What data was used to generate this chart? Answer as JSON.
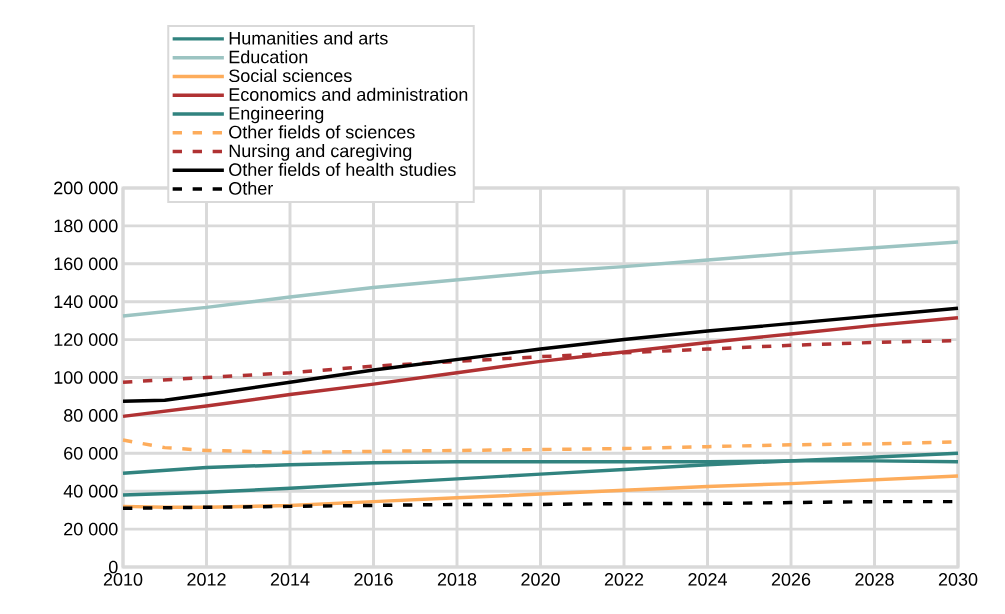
{
  "chart_data": {
    "type": "line",
    "xlim": [
      2010,
      2030
    ],
    "xticks": [
      2010,
      2012,
      2014,
      2016,
      2018,
      2020,
      2022,
      2024,
      2026,
      2028,
      2030
    ],
    "ylim": [
      0,
      200000
    ],
    "yticks": [
      {
        "value": 0,
        "label": "0"
      },
      {
        "value": 20000,
        "label": "20 000"
      },
      {
        "value": 40000,
        "label": "40 000"
      },
      {
        "value": 60000,
        "label": "60 000"
      },
      {
        "value": 80000,
        "label": "80 000"
      },
      {
        "value": 100000,
        "label": "100 000"
      },
      {
        "value": 120000,
        "label": "120 000"
      },
      {
        "value": 140000,
        "label": "140 000"
      },
      {
        "value": 160000,
        "label": "160 000"
      },
      {
        "value": 180000,
        "label": "180 000"
      },
      {
        "value": 200000,
        "label": "200 000"
      }
    ],
    "grid": true,
    "legend": "top left",
    "marker": "none",
    "series": [
      {
        "name": "Humanities and arts",
        "color": "#31837f",
        "line_style": "solid",
        "x": [
          2010,
          2012,
          2014,
          2016,
          2018,
          2020,
          2022,
          2024,
          2026,
          2028,
          2030
        ],
        "values": [
          38000,
          39500,
          41500,
          44000,
          46500,
          49000,
          51500,
          54000,
          56000,
          58000,
          60000
        ]
      },
      {
        "name": "Education",
        "color": "#9cc4c2",
        "line_style": "solid",
        "x": [
          2010,
          2012,
          2014,
          2016,
          2018,
          2020,
          2022,
          2024,
          2026,
          2028,
          2030
        ],
        "values": [
          132500,
          137000,
          142500,
          147500,
          151500,
          155500,
          158500,
          162000,
          165500,
          168500,
          171500
        ]
      },
      {
        "name": "Social sciences",
        "color": "#fdac5b",
        "line_style": "solid",
        "x": [
          2010,
          2011,
          2012,
          2014,
          2016,
          2018,
          2020,
          2022,
          2024,
          2026,
          2028,
          2030
        ],
        "values": [
          32000,
          31500,
          31500,
          32500,
          34500,
          36500,
          38500,
          40500,
          42500,
          44000,
          46000,
          48000
        ]
      },
      {
        "name": "Economics and administration",
        "color": "#b03233",
        "line_style": "solid",
        "x": [
          2010,
          2012,
          2014,
          2016,
          2018,
          2020,
          2022,
          2024,
          2026,
          2028,
          2030
        ],
        "values": [
          79500,
          85000,
          91000,
          96500,
          102500,
          108500,
          113500,
          118500,
          123000,
          127500,
          131500
        ]
      },
      {
        "name": "Engineering",
        "color": "#31837f",
        "line_style": "solid",
        "x": [
          2010,
          2012,
          2014,
          2016,
          2018,
          2020,
          2022,
          2024,
          2026,
          2028,
          2030
        ],
        "values": [
          49500,
          52500,
          54000,
          55000,
          55500,
          55500,
          55500,
          55500,
          56000,
          56000,
          55500
        ]
      },
      {
        "name": "Other fields of sciences",
        "color": "#fdac5b",
        "line_style": "dashed",
        "x": [
          2010,
          2011,
          2012,
          2014,
          2016,
          2018,
          2020,
          2022,
          2024,
          2026,
          2028,
          2030
        ],
        "values": [
          67000,
          63000,
          61500,
          60500,
          61000,
          61500,
          62000,
          62500,
          63500,
          64500,
          65000,
          66000
        ]
      },
      {
        "name": "Nursing and caregiving",
        "color": "#b03233",
        "line_style": "dashed",
        "x": [
          2010,
          2012,
          2014,
          2016,
          2018,
          2020,
          2022,
          2024,
          2026,
          2028,
          2030
        ],
        "values": [
          97500,
          100000,
          102500,
          106000,
          108500,
          111000,
          113000,
          115000,
          117000,
          118500,
          119500
        ]
      },
      {
        "name": "Other fields of health studies",
        "color": "#000000",
        "line_style": "solid",
        "x": [
          2010,
          2011,
          2012,
          2014,
          2016,
          2018,
          2020,
          2022,
          2024,
          2026,
          2028,
          2030
        ],
        "values": [
          87500,
          88000,
          91000,
          97500,
          104000,
          109500,
          115000,
          120000,
          124500,
          128500,
          132500,
          136500
        ]
      },
      {
        "name": "Other",
        "color": "#000000",
        "line_style": "dashed",
        "x": [
          2010,
          2012,
          2014,
          2016,
          2018,
          2020,
          2022,
          2024,
          2026,
          2028,
          2030
        ],
        "values": [
          31000,
          31500,
          32000,
          32500,
          33000,
          33000,
          33500,
          33500,
          34000,
          34500,
          34500
        ]
      }
    ]
  }
}
